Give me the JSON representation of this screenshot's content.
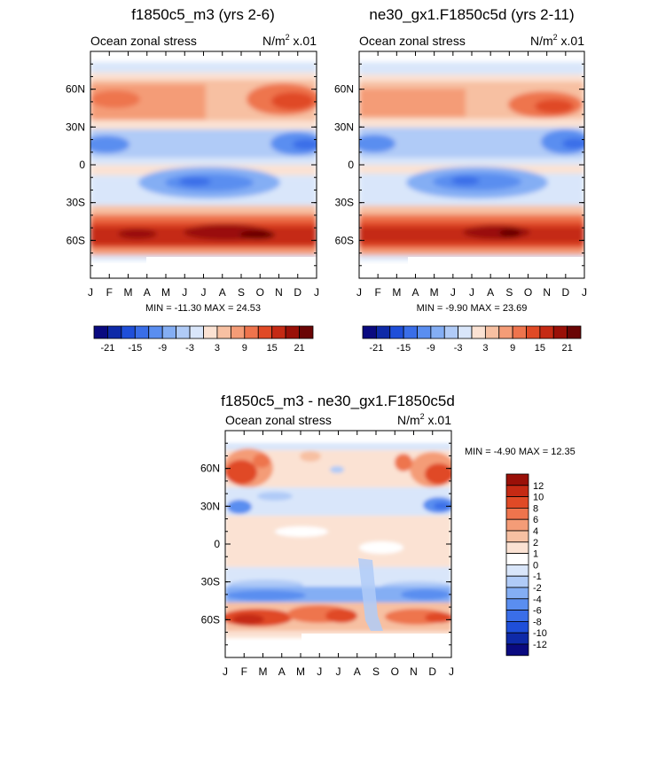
{
  "panels": [
    {
      "title": "f1850c5_m3 (yrs 2-6)",
      "left_label": "Ocean zonal stress",
      "units_pre": "N/m",
      "units_sup": "2",
      "units_post": " x.01",
      "stats": "MIN = -11.30 MAX =  24.53",
      "colorbar_ticks": [
        "-21",
        "-15",
        "-9",
        "-3",
        "3",
        "9",
        "15",
        "21"
      ]
    },
    {
      "title": "ne30_gx1.F1850c5d (yrs 2-11)",
      "left_label": "Ocean zonal stress",
      "units_pre": "N/m",
      "units_sup": "2",
      "units_post": " x.01",
      "stats": "MIN =  -9.90 MAX =  23.69",
      "colorbar_ticks": [
        "-21",
        "-15",
        "-9",
        "-3",
        "3",
        "9",
        "15",
        "21"
      ]
    },
    {
      "title": "f1850c5_m3 - ne30_gx1.F1850c5d",
      "left_label": "Ocean zonal stress",
      "units_pre": "N/m",
      "units_sup": "2",
      "units_post": " x.01",
      "stats": "MIN =  -4.90 MAX =  12.35",
      "colorbar_ticks": [
        "12",
        "10",
        "8",
        "6",
        "4",
        "2",
        "1",
        "0",
        "-1",
        "-2",
        "-4",
        "-6",
        "-8",
        "-10",
        "-12"
      ]
    }
  ],
  "chart_data": [
    {
      "type": "heatmap",
      "title": "f1850c5_m3 (yrs 2-6)",
      "subtitle_left": "Ocean zonal stress",
      "units": "N/m2 x.01",
      "x": [
        "J",
        "F",
        "M",
        "A",
        "M",
        "J",
        "J",
        "A",
        "S",
        "O",
        "N",
        "D",
        "J"
      ],
      "y_ticks": [
        "60N",
        "30N",
        "0",
        "30S",
        "60S"
      ],
      "y_tick_values": [
        60,
        30,
        0,
        -30,
        -60
      ],
      "ylim": [
        -90,
        90
      ],
      "levels": [
        -21,
        -18,
        -15,
        -12,
        -9,
        -6,
        -3,
        0,
        3,
        6,
        9,
        12,
        15,
        18,
        21
      ],
      "min": -11.3,
      "max": 24.53,
      "colors": [
        "#0a0a80",
        "#0e2aa8",
        "#1f4fd9",
        "#3a6ee8",
        "#5a8ef0",
        "#84aef4",
        "#b0cbf7",
        "#d9e6fa",
        "#fbe2d3",
        "#f7c0a2",
        "#f49c77",
        "#ee744d",
        "#e04a26",
        "#c52a14",
        "#9a1008",
        "#6a0505"
      ],
      "features": [
        {
          "lat": 76,
          "month": 0.5,
          "value": -4
        },
        {
          "lat": 48,
          "month": 11.0,
          "value": 12
        },
        {
          "lat": 45,
          "month": 1.5,
          "value": 6
        },
        {
          "lat": 15,
          "month": 0.5,
          "value": -6
        },
        {
          "lat": 15,
          "month": 11.5,
          "value": -9
        },
        {
          "lat": -15,
          "month": 6.5,
          "value": -9
        },
        {
          "lat": -52,
          "month": 7.0,
          "value": 21
        },
        {
          "lat": -52,
          "month": 9.5,
          "value": 21
        },
        {
          "lat": -52,
          "month": 2.8,
          "value": 18
        }
      ]
    },
    {
      "type": "heatmap",
      "title": "ne30_gx1.F1850c5d (yrs 2-11)",
      "subtitle_left": "Ocean zonal stress",
      "units": "N/m2 x.01",
      "x": [
        "J",
        "F",
        "M",
        "A",
        "M",
        "J",
        "J",
        "A",
        "S",
        "O",
        "N",
        "D",
        "J"
      ],
      "y_ticks": [
        "60N",
        "30N",
        "0",
        "30S",
        "60S"
      ],
      "y_tick_values": [
        60,
        30,
        0,
        -30,
        -60
      ],
      "ylim": [
        -90,
        90
      ],
      "levels": [
        -21,
        -18,
        -15,
        -12,
        -9,
        -6,
        -3,
        0,
        3,
        6,
        9,
        12,
        15,
        18,
        21
      ],
      "min": -9.9,
      "max": 23.69,
      "colors": [
        "#0a0a80",
        "#0e2aa8",
        "#1f4fd9",
        "#3a6ee8",
        "#5a8ef0",
        "#84aef4",
        "#b0cbf7",
        "#d9e6fa",
        "#fbe2d3",
        "#f7c0a2",
        "#f49c77",
        "#ee744d",
        "#e04a26",
        "#c52a14",
        "#9a1008",
        "#6a0505"
      ],
      "features": [
        {
          "lat": 48,
          "month": 11.0,
          "value": 12
        },
        {
          "lat": 45,
          "month": 1.0,
          "value": 6
        },
        {
          "lat": 15,
          "month": 0.5,
          "value": -6
        },
        {
          "lat": 15,
          "month": 11.5,
          "value": -9
        },
        {
          "lat": -15,
          "month": 6.5,
          "value": -9
        },
        {
          "lat": -52,
          "month": 8.0,
          "value": 21
        },
        {
          "lat": -52,
          "month": 3.0,
          "value": 15
        }
      ]
    },
    {
      "type": "heatmap",
      "title": "f1850c5_m3 - ne30_gx1.F1850c5d",
      "subtitle_left": "Ocean zonal stress",
      "units": "N/m2 x.01",
      "x": [
        "J",
        "F",
        "M",
        "A",
        "M",
        "J",
        "J",
        "A",
        "S",
        "O",
        "N",
        "D",
        "J"
      ],
      "y_ticks": [
        "60N",
        "30N",
        "0",
        "30S",
        "60S"
      ],
      "y_tick_values": [
        60,
        30,
        0,
        -30,
        -60
      ],
      "ylim": [
        -90,
        90
      ],
      "levels": [
        -12,
        -10,
        -8,
        -6,
        -4,
        -2,
        -1,
        0,
        1,
        2,
        4,
        6,
        8,
        10,
        12
      ],
      "min": -4.9,
      "max": 12.35,
      "colors": [
        "#0a0a80",
        "#0e2aa8",
        "#1f4fd9",
        "#3a6ee8",
        "#5a8ef0",
        "#84aef4",
        "#b0cbf7",
        "#d9e6fa",
        "#ffffff",
        "#fbe2d3",
        "#f7c0a2",
        "#f49c77",
        "#ee744d",
        "#e04a26",
        "#c52a14",
        "#9a1008"
      ],
      "features": [
        {
          "lat": 60,
          "month": 0.8,
          "value": 8
        },
        {
          "lat": 60,
          "month": 11.5,
          "value": 8
        },
        {
          "lat": 30,
          "month": 0.5,
          "value": -4
        },
        {
          "lat": 30,
          "month": 11.0,
          "value": -4
        },
        {
          "lat": 10,
          "month": 6.0,
          "value": 1
        },
        {
          "lat": -40,
          "month": 6.0,
          "value": -2
        },
        {
          "lat": -58,
          "month": 1.0,
          "value": 8
        },
        {
          "lat": -58,
          "month": 5.8,
          "value": 8
        },
        {
          "lat": -58,
          "month": 11.0,
          "value": 6
        }
      ]
    }
  ]
}
